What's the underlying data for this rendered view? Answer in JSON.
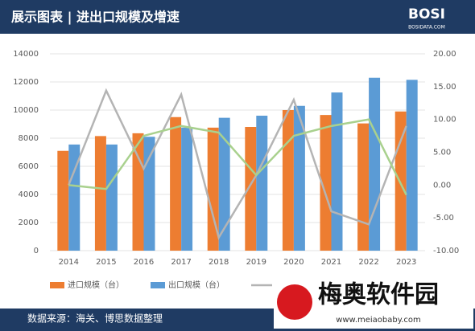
{
  "header": {
    "title": "展示图表 | 进出口规模及增速",
    "logo": "BOSI",
    "logo_sub": "BOSIDATA.COM"
  },
  "chart_data": {
    "type": "bar",
    "categories": [
      "2014",
      "2015",
      "2016",
      "2017",
      "2018",
      "2019",
      "2020",
      "2021",
      "2022",
      "2023"
    ],
    "series": [
      {
        "name": "进口规模（台）",
        "color": "#ed7d31",
        "values": [
          7100,
          8150,
          8350,
          9500,
          8750,
          8800,
          10000,
          9650,
          9050,
          9900
        ]
      },
      {
        "name": "出口规模（台）",
        "color": "#5b9bd5",
        "values": [
          7550,
          7550,
          8100,
          8750,
          9450,
          9600,
          10300,
          11250,
          12300,
          12150
        ]
      },
      {
        "type": "line",
        "axis": "y2",
        "color": "#b4b4b4",
        "values": [
          0,
          14.4,
          2.5,
          13.8,
          -8,
          1.5,
          13,
          -4,
          -6,
          9
        ]
      },
      {
        "type": "line",
        "axis": "y2",
        "color": "#a9d18e",
        "values": [
          0,
          -0.6,
          7.5,
          9,
          8,
          1.5,
          7.5,
          9,
          10,
          -1.5
        ]
      }
    ],
    "ylim": [
      0,
      14000
    ],
    "yticks": [
      0,
      2000,
      4000,
      6000,
      8000,
      10000,
      12000,
      14000
    ],
    "y2lim": [
      -10,
      20
    ],
    "y2ticks": [
      {
        "value": -10,
        "label": "-10.00"
      },
      {
        "value": -5,
        "label": "-5.00"
      },
      {
        "value": 0,
        "label": "0.00"
      },
      {
        "value": 5,
        "label": "5.00"
      },
      {
        "value": 10,
        "label": "10.00"
      },
      {
        "value": 15,
        "label": "15.00"
      },
      {
        "value": 20,
        "label": "20.00"
      }
    ],
    "source": "数据来源：海关、博思数据整理"
  },
  "watermark": {
    "name": "梅奥软件园",
    "url": "www.meiaobaby.com"
  }
}
